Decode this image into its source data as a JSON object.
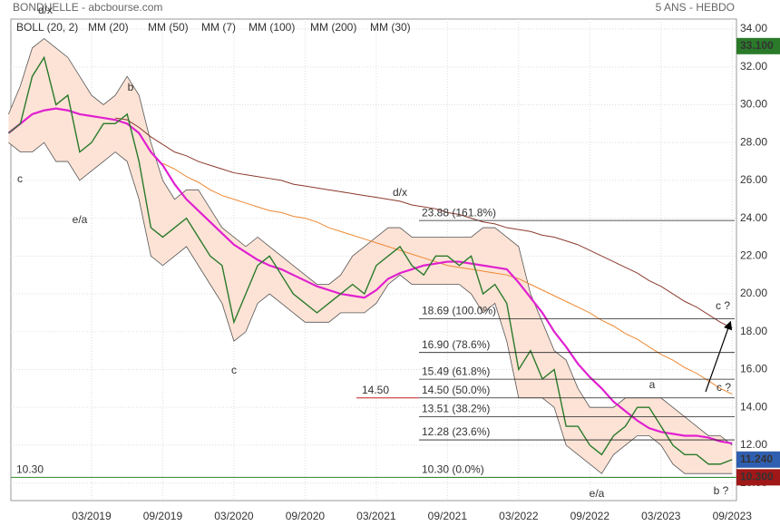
{
  "chart_data": {
    "type": "line",
    "title": "BONDUELLE - abcbourse.com",
    "subtitle": "5 ANS - HEBDO",
    "categories": [
      null,
      null,
      null,
      null,
      null,
      null,
      null,
      "03/2019",
      null,
      null,
      null,
      null,
      null,
      "09/2019",
      null,
      null,
      null,
      null,
      null,
      "03/2020",
      null,
      null,
      null,
      null,
      null,
      "09/2020",
      null,
      null,
      null,
      null,
      null,
      "03/2021",
      null,
      null,
      null,
      null,
      null,
      "09/2021",
      null,
      null,
      null,
      null,
      null,
      "03/2022",
      null,
      null,
      null,
      null,
      null,
      "09/2022",
      null,
      null,
      null,
      null,
      null,
      "03/2023",
      null,
      null,
      null,
      null,
      null,
      "09/2023"
    ],
    "price": {
      "color": "#2a7a2a",
      "values": [
        28.5,
        29,
        31.5,
        32.5,
        30,
        30.5,
        27.5,
        28,
        29,
        29,
        29.5,
        27,
        23.5,
        23,
        23.5,
        24,
        23,
        22,
        21.5,
        18.5,
        20,
        21.5,
        22,
        21,
        20,
        19.5,
        19,
        19.5,
        20,
        20.5,
        20,
        21.5,
        22,
        22.5,
        21.5,
        21,
        22,
        22,
        21.5,
        22,
        20,
        20.5,
        19.5,
        16,
        17,
        15.5,
        16,
        13,
        13,
        12,
        11.5,
        12.5,
        13,
        14,
        14,
        13,
        12,
        11.5,
        11.5,
        11,
        11,
        11.24
      ]
    },
    "series": [
      {
        "name": "BOLL (20, 2)",
        "color": "#555555",
        "fill": "#fde3d6",
        "upper": [
          29.5,
          31,
          33,
          33.5,
          33,
          32.5,
          31.5,
          30.5,
          30,
          30.5,
          31.5,
          30.5,
          28,
          26,
          25,
          25.5,
          25.5,
          24.5,
          23.5,
          23,
          22.5,
          23,
          22.5,
          22,
          21.5,
          21,
          20.5,
          20.5,
          21,
          22,
          22.5,
          23,
          23.5,
          23.5,
          23,
          23,
          23,
          23,
          23,
          23,
          23.5,
          23.5,
          23,
          22.5,
          20,
          18.5,
          17,
          16.5,
          15,
          14,
          14,
          14,
          14.5,
          14.5,
          14.5,
          14.5,
          14,
          13.5,
          13,
          12.5,
          12.5,
          12
        ],
        "lower": [
          28,
          27.5,
          27.5,
          28,
          27,
          27,
          26,
          26.5,
          27,
          27.5,
          27,
          25,
          22,
          21.5,
          22,
          22.5,
          21.5,
          20.5,
          19.5,
          17.5,
          18,
          19.5,
          20,
          19.5,
          19,
          18.5,
          18.5,
          18.5,
          19,
          19,
          19,
          19.5,
          20.5,
          21,
          20.5,
          20.5,
          20.5,
          20.5,
          20.5,
          20,
          19,
          19.5,
          17.5,
          14.5,
          14.5,
          14.5,
          14,
          12,
          11.5,
          11,
          10.5,
          11.5,
          12,
          12.5,
          12.5,
          12,
          11,
          10.5,
          10.5,
          10.5,
          10.5,
          10.5
        ]
      },
      {
        "name": "MM (20)",
        "color": "#3d6fd6"
      },
      {
        "name": "MM (50)",
        "color": "#e03c3c"
      },
      {
        "name": "MM (7)",
        "color": "#2e9a2e"
      },
      {
        "name": "MM (100)",
        "color": "#ee8833",
        "values": [
          null,
          null,
          null,
          null,
          null,
          null,
          null,
          null,
          null,
          null,
          null,
          null,
          null,
          26.9,
          26.6,
          26.2,
          25.9,
          25.5,
          25.2,
          25.0,
          24.8,
          24.6,
          24.4,
          24.3,
          24.1,
          24.0,
          23.8,
          23.5,
          23.3,
          23.1,
          22.9,
          22.7,
          22.5,
          22.3,
          22.1,
          21.9,
          21.7,
          21.5,
          21.4,
          21.3,
          21.2,
          21.1,
          21.0,
          20.8,
          20.5,
          20.2,
          19.9,
          19.6,
          19.3,
          19.0,
          18.6,
          18.3,
          17.9,
          17.6,
          17.2,
          16.8,
          16.5,
          16.1,
          15.8,
          15.4,
          15.0,
          14.7
        ]
      },
      {
        "name": "MM (200)",
        "color": "#8b3a2e",
        "values": [
          null,
          null,
          null,
          null,
          null,
          null,
          null,
          null,
          null,
          29.3,
          29.2,
          28.8,
          28.3,
          27.9,
          27.5,
          27.3,
          27.0,
          26.8,
          26.6,
          26.4,
          26.3,
          26.2,
          26.1,
          26.0,
          25.8,
          25.7,
          25.6,
          25.5,
          25.4,
          25.3,
          25.2,
          25.1,
          25.0,
          24.9,
          24.7,
          24.6,
          24.5,
          24.3,
          24.2,
          24.0,
          23.8,
          23.7,
          23.5,
          23.4,
          23.3,
          23.1,
          23.0,
          22.8,
          22.6,
          22.3,
          22.0,
          21.7,
          21.4,
          21.1,
          20.7,
          20.4,
          20.0,
          19.6,
          19.3,
          18.9,
          18.5,
          18.2
        ]
      },
      {
        "name": "MM (30)",
        "color": "#e020d0",
        "values": [
          28.5,
          29.0,
          29.5,
          29.7,
          29.8,
          29.7,
          29.5,
          29.4,
          29.3,
          29.2,
          29.0,
          28.5,
          27.5,
          26.8,
          25.8,
          25.0,
          24.4,
          23.8,
          23.2,
          22.6,
          22.2,
          21.8,
          21.5,
          21.3,
          21.0,
          20.7,
          20.4,
          20.2,
          20.0,
          19.9,
          19.8,
          20.2,
          20.8,
          21.1,
          21.3,
          21.5,
          21.6,
          21.7,
          21.7,
          21.6,
          21.5,
          21.4,
          21.3,
          20.6,
          19.8,
          19.0,
          18.0,
          17.2,
          16.3,
          15.6,
          15.0,
          14.3,
          13.8,
          13.3,
          12.9,
          12.7,
          12.6,
          12.5,
          12.5,
          12.4,
          12.2,
          12.1
        ]
      }
    ],
    "ylim": [
      9.07,
      34.53
    ],
    "yticks": [
      {
        "value": 34,
        "label": "34.00"
      },
      {
        "value": 32,
        "label": "32.00"
      },
      {
        "value": 30,
        "label": "30.00"
      },
      {
        "value": 28,
        "label": "28.00"
      },
      {
        "value": 26,
        "label": "26.00"
      },
      {
        "value": 24,
        "label": "24.00"
      },
      {
        "value": 22,
        "label": "22.00"
      },
      {
        "value": 20,
        "label": "20.00"
      },
      {
        "value": 18,
        "label": "18.00"
      },
      {
        "value": 16,
        "label": "16.00"
      },
      {
        "value": 14,
        "label": "14.00"
      },
      {
        "value": 12,
        "label": "12.00"
      },
      {
        "value": 10,
        "label": "10.00"
      }
    ],
    "grid": true,
    "fib_levels": [
      {
        "value": 23.88,
        "label": "23.88  (161.8%)"
      },
      {
        "value": 18.69,
        "label": "18.69  (100.0%)"
      },
      {
        "value": 16.9,
        "label": "16.90  (78.6%)"
      },
      {
        "value": 15.49,
        "label": "15.49  (61.8%)"
      },
      {
        "value": 14.5,
        "label": "14.50  (50.0%)"
      },
      {
        "value": 13.51,
        "label": "13.51  (38.2%)"
      },
      {
        "value": 12.28,
        "label": "12.28  (23.6%)"
      },
      {
        "value": 10.3,
        "label": "10.30  (0.0%)"
      }
    ],
    "resistance": {
      "value": 14.5,
      "label": "14.50",
      "color": "#c02020"
    },
    "support": {
      "value": 10.3,
      "label": "10.30",
      "color": "#2a8a2a"
    },
    "price_tags": [
      {
        "value": 33.1,
        "label": "33.100",
        "color": "#2a7a2a"
      },
      {
        "value": 11.24,
        "label": "11.240",
        "color": "#2f5fb0"
      },
      {
        "value": 10.3,
        "label": "10.300",
        "color": "#a01818"
      }
    ],
    "annotations": [
      "d/x",
      "b",
      "c",
      "e/a",
      "c",
      "d/x",
      "a",
      "c ?",
      "c ?",
      "e/a",
      "b ?"
    ]
  }
}
